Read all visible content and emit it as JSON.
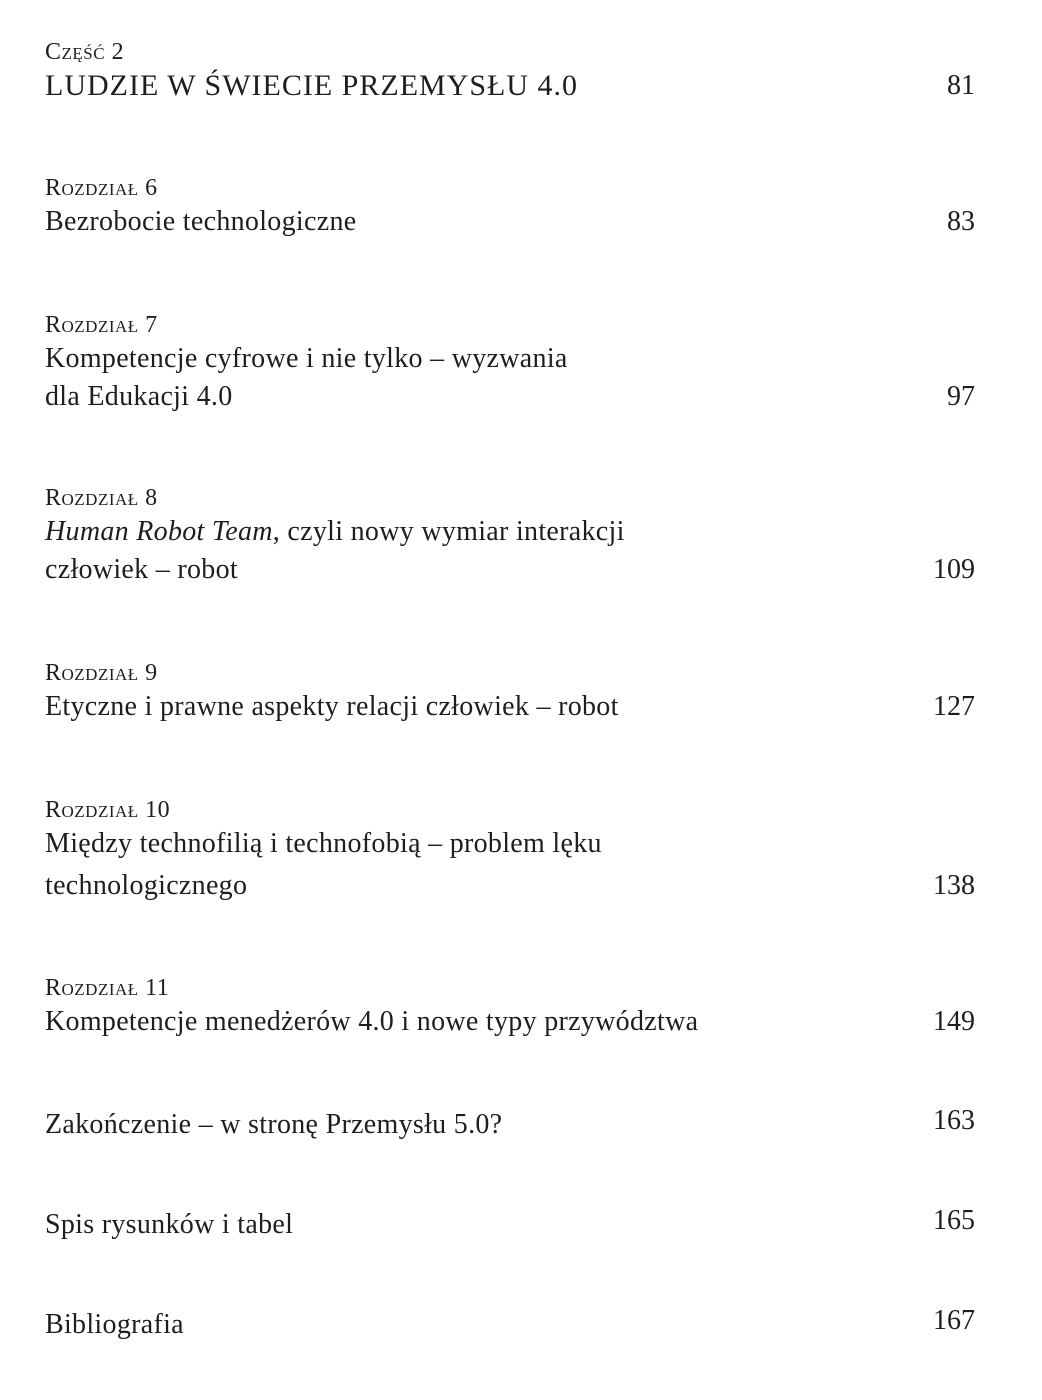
{
  "part": {
    "label": "Część 2",
    "title": "LUDZIE W ŚWIECIE PRZEMYSŁU 4.0",
    "page": "81"
  },
  "entries": [
    {
      "label": "Rozdział 6",
      "title": "Bezrobocie technologiczne",
      "page": "83"
    },
    {
      "label": "Rozdział 7",
      "title_line1": "Kompetencje cyfrowe i nie tylko – wyzwania",
      "title_line2": "dla Edukacji 4.0",
      "page": "97"
    },
    {
      "label": "Rozdział 8",
      "title_italic": "Human Robot Team",
      "title_rest": ", czyli nowy wymiar interakcji",
      "title_line2": "człowiek – robot",
      "page": "109"
    },
    {
      "label": "Rozdział 9",
      "title": "Etyczne i prawne aspekty relacji człowiek – robot",
      "page": "127"
    },
    {
      "label": "Rozdział 10",
      "title_line1": "Między technofilią i technofobią – problem lęku",
      "title_line2": "technologicznego",
      "page": "138"
    },
    {
      "label": "Rozdział 11",
      "title": "Kompetencje menedżerów 4.0 i nowe typy przywództwa",
      "page": "149"
    },
    {
      "title": "Zakończenie – w stronę Przemysłu 5.0?",
      "page": "163"
    },
    {
      "title": "Spis rysunków i tabel",
      "page": "165"
    },
    {
      "title": "Bibliografia",
      "page": "167"
    }
  ]
}
